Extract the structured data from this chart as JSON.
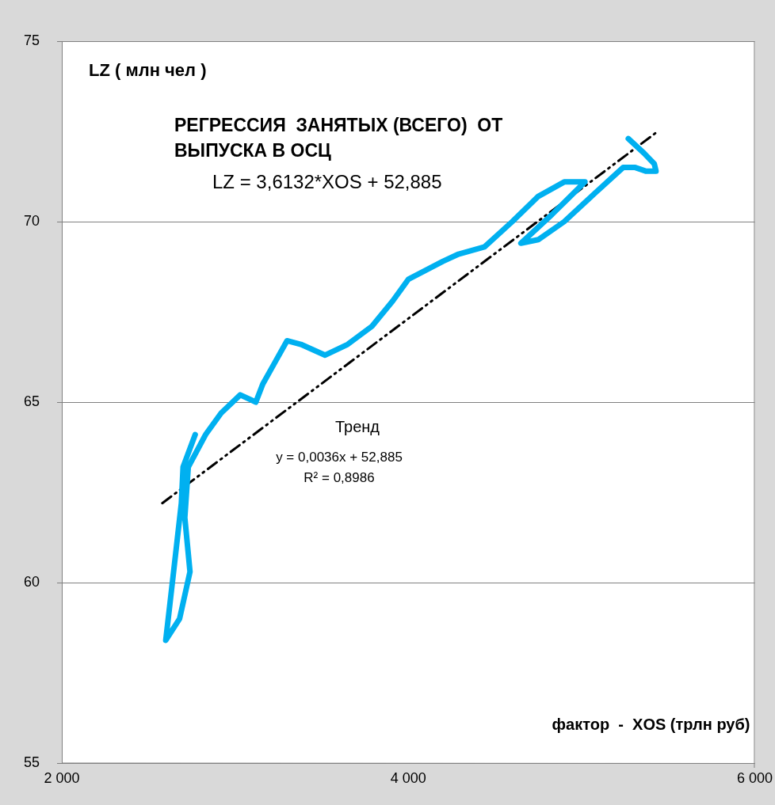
{
  "chart_data": {
    "type": "line",
    "title": "РЕГРЕССИЯ  ЗАНЯТЫХ (ВСЕГО)  ОТ ВЫПУСКА В ОСЦ",
    "subtitle": "LZ = 3,6132*XOS + 52,885",
    "ylabel": "LZ ( млн чел )",
    "xlabel": "фактор  -  XOS (трлн руб)",
    "annotations": [
      "Тренд",
      "y = 0,0036x + 52,885",
      "R² = 0,8986"
    ],
    "xlim": [
      2000,
      6000
    ],
    "xticks": [
      {
        "value": 2000,
        "label": "2 000"
      },
      {
        "value": 4000,
        "label": "4 000"
      },
      {
        "value": 6000,
        "label": "6 000"
      }
    ],
    "ylim": [
      55,
      75
    ],
    "yticks": [
      55,
      60,
      65,
      70,
      75
    ],
    "grid": "y",
    "legend": false,
    "marker": "none",
    "series": [
      {
        "color": "#00b0f0",
        "line_style": "solid",
        "x": [
          2770,
          2700,
          2690,
          2650,
          2600,
          2680,
          2740,
          2710,
          2730,
          2830,
          2920,
          3030,
          3120,
          3160,
          3230,
          3300,
          3380,
          3520,
          3650,
          3790,
          3910,
          4000,
          4200,
          4290,
          4440,
          4600,
          4750,
          4900,
          5020,
          4830,
          4650,
          4750,
          4900,
          5080,
          5240,
          5310,
          5370,
          5430,
          5420,
          5360,
          5270
        ],
        "values": [
          64.1,
          63.2,
          62.2,
          60.5,
          58.4,
          59.0,
          60.3,
          61.8,
          63.2,
          64.1,
          64.7,
          65.2,
          65.0,
          65.5,
          66.1,
          66.7,
          66.6,
          66.3,
          66.6,
          67.1,
          67.8,
          68.4,
          68.9,
          69.1,
          69.3,
          70.0,
          70.7,
          71.1,
          71.1,
          70.2,
          69.4,
          69.5,
          70.0,
          70.8,
          71.5,
          71.5,
          71.4,
          71.4,
          71.6,
          71.9,
          72.3
        ]
      },
      {
        "type": "line",
        "color": "#000000",
        "line_style": "dashed",
        "x": [
          2580,
          5440
        ],
        "values": [
          62.2,
          72.5
        ]
      }
    ]
  }
}
